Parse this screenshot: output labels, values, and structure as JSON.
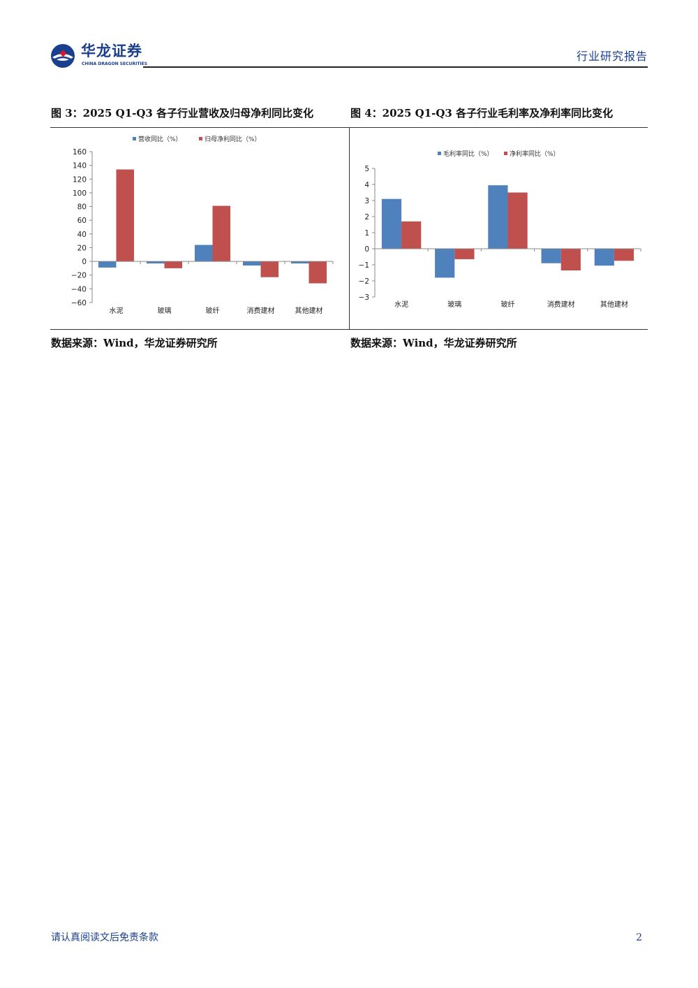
{
  "header": {
    "logo_cn": "华龙证券",
    "logo_en": "CHINA DRAGON SECURITIES",
    "report_type": "行业研究报告"
  },
  "figures": [
    {
      "title": "图 3：2025 Q1-Q3 各子行业营收及归母净利同比变化",
      "source": "数据来源：Wind，华龙证券研究所"
    },
    {
      "title": "图 4：2025 Q1-Q3 各子行业毛利率及净利率同比变化",
      "source": "数据来源：Wind，华龙证券研究所"
    }
  ],
  "chart_data": [
    {
      "type": "bar",
      "categories": [
        "水泥",
        "玻璃",
        "玻纤",
        "消费建材",
        "其他建材"
      ],
      "series": [
        {
          "name": "营收同比（%）",
          "color": "#4f81bd",
          "values": [
            -9,
            -3,
            24,
            -6,
            -3
          ]
        },
        {
          "name": "归母净利同比（%）",
          "color": "#c0504d",
          "values": [
            134,
            -10,
            81,
            -23,
            -32
          ]
        }
      ],
      "ylim": [
        -60,
        160
      ],
      "yticks": [
        160,
        140,
        120,
        100,
        80,
        60,
        40,
        20,
        0,
        -20,
        -40,
        -60
      ],
      "legend": "top-center",
      "grid": false
    },
    {
      "type": "bar",
      "categories": [
        "水泥",
        "玻璃",
        "玻纤",
        "消费建材",
        "其他建材"
      ],
      "series": [
        {
          "name": "毛利率同比（%）",
          "color": "#4f81bd",
          "values": [
            3.1,
            -1.8,
            3.95,
            -0.9,
            -1.05
          ]
        },
        {
          "name": "净利率同比（%）",
          "color": "#c0504d",
          "values": [
            1.7,
            -0.65,
            3.5,
            -1.35,
            -0.75
          ]
        }
      ],
      "ylim": [
        -3,
        5
      ],
      "yticks": [
        5,
        4,
        3,
        2,
        1,
        0,
        -1,
        -2,
        -3
      ],
      "legend": "top-center",
      "grid": false
    }
  ],
  "footer": {
    "disclaimer": "请认真阅读文后免责条款",
    "page_number": "2"
  }
}
